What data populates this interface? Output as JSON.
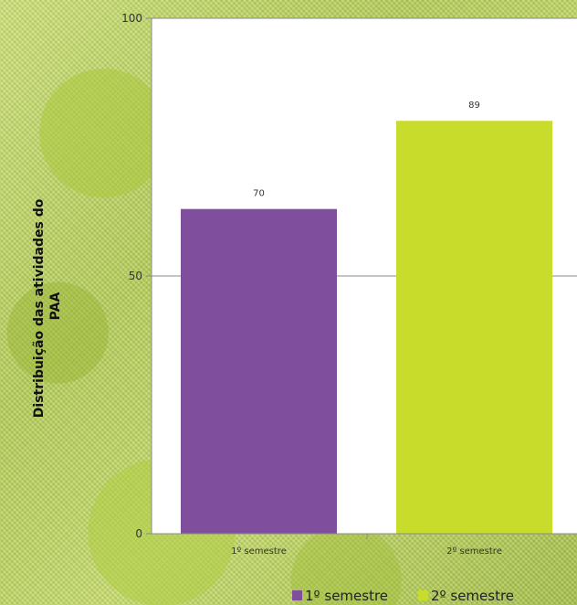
{
  "chart_data": {
    "type": "bar",
    "categories": [
      "1º semestre",
      "2º semestre"
    ],
    "values": [
      70,
      89
    ],
    "colors": [
      "#7f4f9e",
      "#c8dc2c"
    ],
    "ylabel": "Distribuição das atividades do PAA",
    "ylim": [
      0,
      100
    ],
    "yticks": [
      0,
      50,
      100
    ],
    "grid": true,
    "legend": {
      "position": "bottom",
      "entries": [
        "1º semestre",
        "2º semestre"
      ]
    }
  }
}
